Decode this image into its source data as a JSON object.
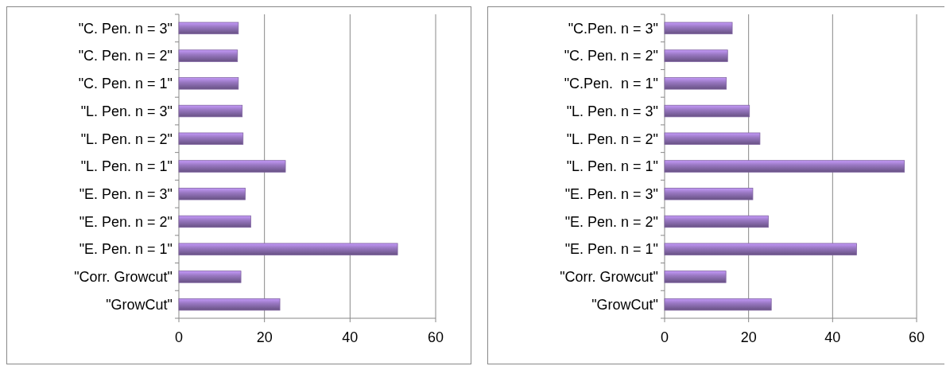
{
  "chart_data": [
    {
      "type": "bar",
      "orientation": "horizontal",
      "categories": [
        "\"C. Pen. n = 3\"",
        "\"C. Pen. n = 2\"",
        "\"C. Pen. n = 1\"",
        "\"L. Pen. n = 3\"",
        "\"L. Pen. n = 2\"",
        "\"L. Pen. n = 1\"",
        "\"E. Pen. n = 3\"",
        "\"E. Pen. n = 2\"",
        "\"E. Pen. n = 1\"",
        "\"Corr. Growcut\"",
        "\"GrowCut\""
      ],
      "values": [
        13.9,
        13.7,
        13.9,
        14.8,
        15.0,
        24.9,
        15.5,
        16.8,
        51.1,
        14.5,
        23.6
      ],
      "color": "#8064a2",
      "xlim": [
        0,
        60
      ],
      "xticks": [
        0,
        20,
        40,
        60
      ],
      "grid": "x"
    },
    {
      "type": "bar",
      "orientation": "horizontal",
      "categories": [
        "\"C.Pen. n = 3\"",
        "\"C. Pen. n = 2\"",
        "\"C.Pen.  n = 1\"",
        "\"L. Pen. n = 3\"",
        "\"L. Pen. n = 2\"",
        "\"L. Pen. n = 1\"",
        "\"E. Pen. n = 3\"",
        "\"E. Pen. n = 2\"",
        "\"E. Pen. n = 1\"",
        "\"Corr. Growcut\"",
        "\"GrowCut\""
      ],
      "values": [
        16.1,
        15.0,
        14.7,
        20.2,
        22.7,
        57.1,
        21.0,
        24.7,
        45.7,
        14.6,
        25.4
      ],
      "color": "#8064a2",
      "xlim": [
        0,
        60
      ],
      "xticks": [
        0,
        20,
        40,
        60
      ],
      "grid": "x"
    }
  ]
}
